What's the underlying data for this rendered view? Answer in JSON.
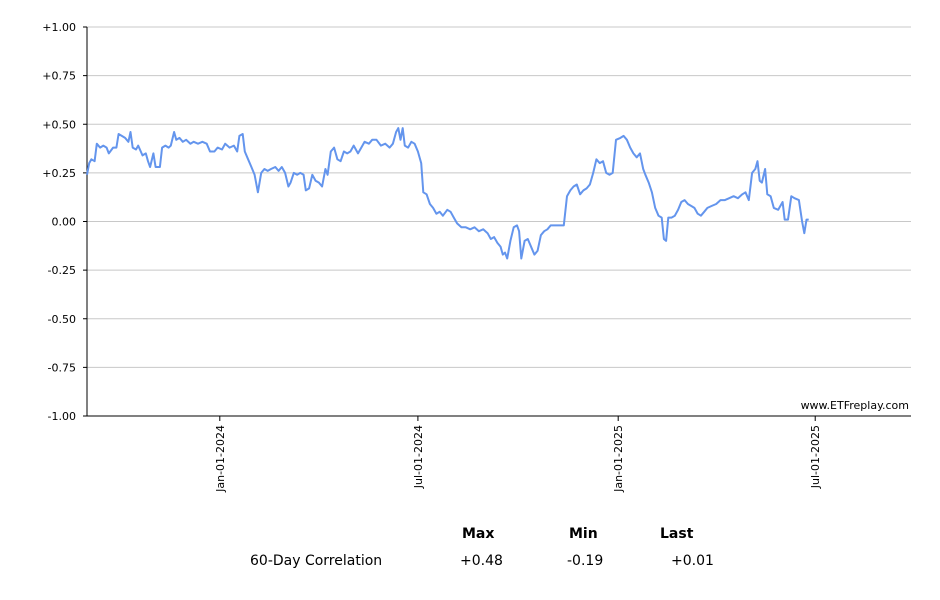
{
  "chart_data": {
    "type": "line",
    "ylim": [
      -1.0,
      1.0
    ],
    "y_ticks": [
      "+1.00",
      "+0.75",
      "+0.50",
      "+0.25",
      "0.00",
      "-0.25",
      "-0.50",
      "-0.75",
      "-1.00"
    ],
    "y_tick_values": [
      1.0,
      0.75,
      0.5,
      0.25,
      0.0,
      -0.25,
      -0.5,
      -0.75,
      -1.0
    ],
    "x_range": [
      "2023-09-01",
      "2025-09-27"
    ],
    "x_ticks": [
      {
        "label": "Jan-01-2024",
        "date": "2024-01-01"
      },
      {
        "label": "Jul-01-2024",
        "date": "2024-07-01"
      },
      {
        "label": "Jan-01-2025",
        "date": "2025-01-01"
      },
      {
        "label": "Jul-01-2025",
        "date": "2025-07-01"
      }
    ],
    "grid": "horizontal",
    "line_color": "#6495ed",
    "watermark": "www.ETFreplay.com",
    "series": [
      {
        "points": [
          [
            "2023-09-01",
            0.24
          ],
          [
            "2023-09-03",
            0.3
          ],
          [
            "2023-09-05",
            0.32
          ],
          [
            "2023-09-08",
            0.31
          ],
          [
            "2023-09-10",
            0.4
          ],
          [
            "2023-09-13",
            0.38
          ],
          [
            "2023-09-16",
            0.39
          ],
          [
            "2023-09-19",
            0.38
          ],
          [
            "2023-09-21",
            0.35
          ],
          [
            "2023-09-25",
            0.38
          ],
          [
            "2023-09-28",
            0.38
          ],
          [
            "2023-09-30",
            0.45
          ],
          [
            "2023-10-03",
            0.44
          ],
          [
            "2023-10-06",
            0.43
          ],
          [
            "2023-10-09",
            0.41
          ],
          [
            "2023-10-11",
            0.46
          ],
          [
            "2023-10-13",
            0.38
          ],
          [
            "2023-10-16",
            0.37
          ],
          [
            "2023-10-18",
            0.39
          ],
          [
            "2023-10-22",
            0.34
          ],
          [
            "2023-10-25",
            0.35
          ],
          [
            "2023-10-27",
            0.31
          ],
          [
            "2023-10-29",
            0.28
          ],
          [
            "2023-11-01",
            0.35
          ],
          [
            "2023-11-03",
            0.28
          ],
          [
            "2023-11-07",
            0.28
          ],
          [
            "2023-11-09",
            0.38
          ],
          [
            "2023-11-12",
            0.39
          ],
          [
            "2023-11-15",
            0.38
          ],
          [
            "2023-11-17",
            0.39
          ],
          [
            "2023-11-20",
            0.46
          ],
          [
            "2023-11-22",
            0.42
          ],
          [
            "2023-11-25",
            0.43
          ],
          [
            "2023-11-28",
            0.41
          ],
          [
            "2023-12-01",
            0.42
          ],
          [
            "2023-12-05",
            0.4
          ],
          [
            "2023-12-08",
            0.41
          ],
          [
            "2023-12-12",
            0.4
          ],
          [
            "2023-12-16",
            0.41
          ],
          [
            "2023-12-20",
            0.4
          ],
          [
            "2023-12-23",
            0.36
          ],
          [
            "2023-12-27",
            0.36
          ],
          [
            "2023-12-30",
            0.38
          ],
          [
            "2024-01-03",
            0.37
          ],
          [
            "2024-01-06",
            0.4
          ],
          [
            "2024-01-10",
            0.38
          ],
          [
            "2024-01-14",
            0.39
          ],
          [
            "2024-01-17",
            0.36
          ],
          [
            "2024-01-19",
            0.44
          ],
          [
            "2024-01-22",
            0.45
          ],
          [
            "2024-01-24",
            0.36
          ],
          [
            "2024-01-27",
            0.32
          ],
          [
            "2024-01-30",
            0.28
          ],
          [
            "2024-02-02",
            0.24
          ],
          [
            "2024-02-05",
            0.15
          ],
          [
            "2024-02-08",
            0.25
          ],
          [
            "2024-02-11",
            0.27
          ],
          [
            "2024-02-14",
            0.26
          ],
          [
            "2024-02-17",
            0.27
          ],
          [
            "2024-02-21",
            0.28
          ],
          [
            "2024-02-24",
            0.26
          ],
          [
            "2024-02-27",
            0.28
          ],
          [
            "2024-03-01",
            0.25
          ],
          [
            "2024-03-04",
            0.18
          ],
          [
            "2024-03-06",
            0.2
          ],
          [
            "2024-03-09",
            0.25
          ],
          [
            "2024-03-12",
            0.24
          ],
          [
            "2024-03-15",
            0.25
          ],
          [
            "2024-03-18",
            0.24
          ],
          [
            "2024-03-20",
            0.16
          ],
          [
            "2024-03-23",
            0.17
          ],
          [
            "2024-03-26",
            0.24
          ],
          [
            "2024-03-29",
            0.21
          ],
          [
            "2024-04-01",
            0.2
          ],
          [
            "2024-04-04",
            0.18
          ],
          [
            "2024-04-07",
            0.27
          ],
          [
            "2024-04-09",
            0.24
          ],
          [
            "2024-04-12",
            0.36
          ],
          [
            "2024-04-15",
            0.38
          ],
          [
            "2024-04-18",
            0.32
          ],
          [
            "2024-04-21",
            0.31
          ],
          [
            "2024-04-24",
            0.36
          ],
          [
            "2024-04-27",
            0.35
          ],
          [
            "2024-04-30",
            0.36
          ],
          [
            "2024-05-03",
            0.39
          ],
          [
            "2024-05-07",
            0.35
          ],
          [
            "2024-05-10",
            0.38
          ],
          [
            "2024-05-13",
            0.41
          ],
          [
            "2024-05-17",
            0.4
          ],
          [
            "2024-05-20",
            0.42
          ],
          [
            "2024-05-24",
            0.42
          ],
          [
            "2024-05-28",
            0.39
          ],
          [
            "2024-06-01",
            0.4
          ],
          [
            "2024-06-05",
            0.38
          ],
          [
            "2024-06-08",
            0.4
          ],
          [
            "2024-06-11",
            0.46
          ],
          [
            "2024-06-13",
            0.48
          ],
          [
            "2024-06-15",
            0.42
          ],
          [
            "2024-06-17",
            0.48
          ],
          [
            "2024-06-19",
            0.39
          ],
          [
            "2024-06-22",
            0.38
          ],
          [
            "2024-06-25",
            0.41
          ],
          [
            "2024-06-28",
            0.4
          ],
          [
            "2024-07-01",
            0.36
          ],
          [
            "2024-07-04",
            0.3
          ],
          [
            "2024-07-06",
            0.15
          ],
          [
            "2024-07-09",
            0.14
          ],
          [
            "2024-07-12",
            0.09
          ],
          [
            "2024-07-15",
            0.07
          ],
          [
            "2024-07-18",
            0.04
          ],
          [
            "2024-07-21",
            0.05
          ],
          [
            "2024-07-24",
            0.03
          ],
          [
            "2024-07-28",
            0.06
          ],
          [
            "2024-07-31",
            0.05
          ],
          [
            "2024-08-03",
            0.02
          ],
          [
            "2024-08-06",
            -0.01
          ],
          [
            "2024-08-10",
            -0.03
          ],
          [
            "2024-08-14",
            -0.03
          ],
          [
            "2024-08-18",
            -0.04
          ],
          [
            "2024-08-22",
            -0.03
          ],
          [
            "2024-08-26",
            -0.05
          ],
          [
            "2024-08-30",
            -0.04
          ],
          [
            "2024-09-03",
            -0.06
          ],
          [
            "2024-09-06",
            -0.09
          ],
          [
            "2024-09-09",
            -0.08
          ],
          [
            "2024-09-12",
            -0.11
          ],
          [
            "2024-09-15",
            -0.13
          ],
          [
            "2024-09-17",
            -0.17
          ],
          [
            "2024-09-19",
            -0.16
          ],
          [
            "2024-09-21",
            -0.19
          ],
          [
            "2024-09-24",
            -0.1
          ],
          [
            "2024-09-27",
            -0.03
          ],
          [
            "2024-09-30",
            -0.02
          ],
          [
            "2024-10-02",
            -0.05
          ],
          [
            "2024-10-04",
            -0.19
          ],
          [
            "2024-10-07",
            -0.1
          ],
          [
            "2024-10-10",
            -0.09
          ],
          [
            "2024-10-13",
            -0.13
          ],
          [
            "2024-10-16",
            -0.17
          ],
          [
            "2024-10-19",
            -0.15
          ],
          [
            "2024-10-22",
            -0.07
          ],
          [
            "2024-10-25",
            -0.05
          ],
          [
            "2024-10-28",
            -0.04
          ],
          [
            "2024-10-31",
            -0.02
          ],
          [
            "2024-11-04",
            -0.02
          ],
          [
            "2024-11-08",
            -0.02
          ],
          [
            "2024-11-12",
            -0.02
          ],
          [
            "2024-11-15",
            0.13
          ],
          [
            "2024-11-18",
            0.16
          ],
          [
            "2024-11-21",
            0.18
          ],
          [
            "2024-11-24",
            0.19
          ],
          [
            "2024-11-27",
            0.14
          ],
          [
            "2024-11-30",
            0.16
          ],
          [
            "2024-12-03",
            0.17
          ],
          [
            "2024-12-06",
            0.19
          ],
          [
            "2024-12-09",
            0.25
          ],
          [
            "2024-12-12",
            0.32
          ],
          [
            "2024-12-15",
            0.3
          ],
          [
            "2024-12-18",
            0.31
          ],
          [
            "2024-12-21",
            0.25
          ],
          [
            "2024-12-24",
            0.24
          ],
          [
            "2024-12-27",
            0.25
          ],
          [
            "2024-12-30",
            0.42
          ],
          [
            "2025-01-03",
            0.43
          ],
          [
            "2025-01-06",
            0.44
          ],
          [
            "2025-01-09",
            0.42
          ],
          [
            "2025-01-12",
            0.38
          ],
          [
            "2025-01-15",
            0.35
          ],
          [
            "2025-01-18",
            0.33
          ],
          [
            "2025-01-21",
            0.35
          ],
          [
            "2025-01-24",
            0.27
          ],
          [
            "2025-01-26",
            0.24
          ],
          [
            "2025-01-29",
            0.2
          ],
          [
            "2025-02-01",
            0.15
          ],
          [
            "2025-02-04",
            0.07
          ],
          [
            "2025-02-07",
            0.03
          ],
          [
            "2025-02-10",
            0.02
          ],
          [
            "2025-02-12",
            -0.09
          ],
          [
            "2025-02-14",
            -0.1
          ],
          [
            "2025-02-16",
            0.02
          ],
          [
            "2025-02-19",
            0.02
          ],
          [
            "2025-02-22",
            0.03
          ],
          [
            "2025-02-25",
            0.06
          ],
          [
            "2025-02-28",
            0.1
          ],
          [
            "2025-03-03",
            0.11
          ],
          [
            "2025-03-06",
            0.09
          ],
          [
            "2025-03-09",
            0.08
          ],
          [
            "2025-03-12",
            0.07
          ],
          [
            "2025-03-15",
            0.04
          ],
          [
            "2025-03-18",
            0.03
          ],
          [
            "2025-03-21",
            0.05
          ],
          [
            "2025-03-24",
            0.07
          ],
          [
            "2025-03-28",
            0.08
          ],
          [
            "2025-04-01",
            0.09
          ],
          [
            "2025-04-05",
            0.11
          ],
          [
            "2025-04-09",
            0.11
          ],
          [
            "2025-04-13",
            0.12
          ],
          [
            "2025-04-17",
            0.13
          ],
          [
            "2025-04-21",
            0.12
          ],
          [
            "2025-04-25",
            0.14
          ],
          [
            "2025-04-28",
            0.15
          ],
          [
            "2025-05-01",
            0.11
          ],
          [
            "2025-05-04",
            0.25
          ],
          [
            "2025-05-07",
            0.27
          ],
          [
            "2025-05-09",
            0.31
          ],
          [
            "2025-05-11",
            0.21
          ],
          [
            "2025-05-13",
            0.2
          ],
          [
            "2025-05-16",
            0.27
          ],
          [
            "2025-05-18",
            0.14
          ],
          [
            "2025-05-21",
            0.13
          ],
          [
            "2025-05-24",
            0.07
          ],
          [
            "2025-05-28",
            0.06
          ],
          [
            "2025-06-01",
            0.1
          ],
          [
            "2025-06-03",
            0.01
          ],
          [
            "2025-06-06",
            0.01
          ],
          [
            "2025-06-09",
            0.13
          ],
          [
            "2025-06-12",
            0.12
          ],
          [
            "2025-06-16",
            0.11
          ],
          [
            "2025-06-19",
            0.0
          ],
          [
            "2025-06-21",
            -0.06
          ],
          [
            "2025-06-23",
            0.01
          ],
          [
            "2025-06-25",
            0.01
          ]
        ]
      }
    ]
  },
  "stats": {
    "headers": {
      "max": "Max",
      "min": "Min",
      "last": "Last"
    },
    "row_label": "60-Day Correlation",
    "max": "+0.48",
    "min": "-0.19",
    "last": "+0.01"
  }
}
